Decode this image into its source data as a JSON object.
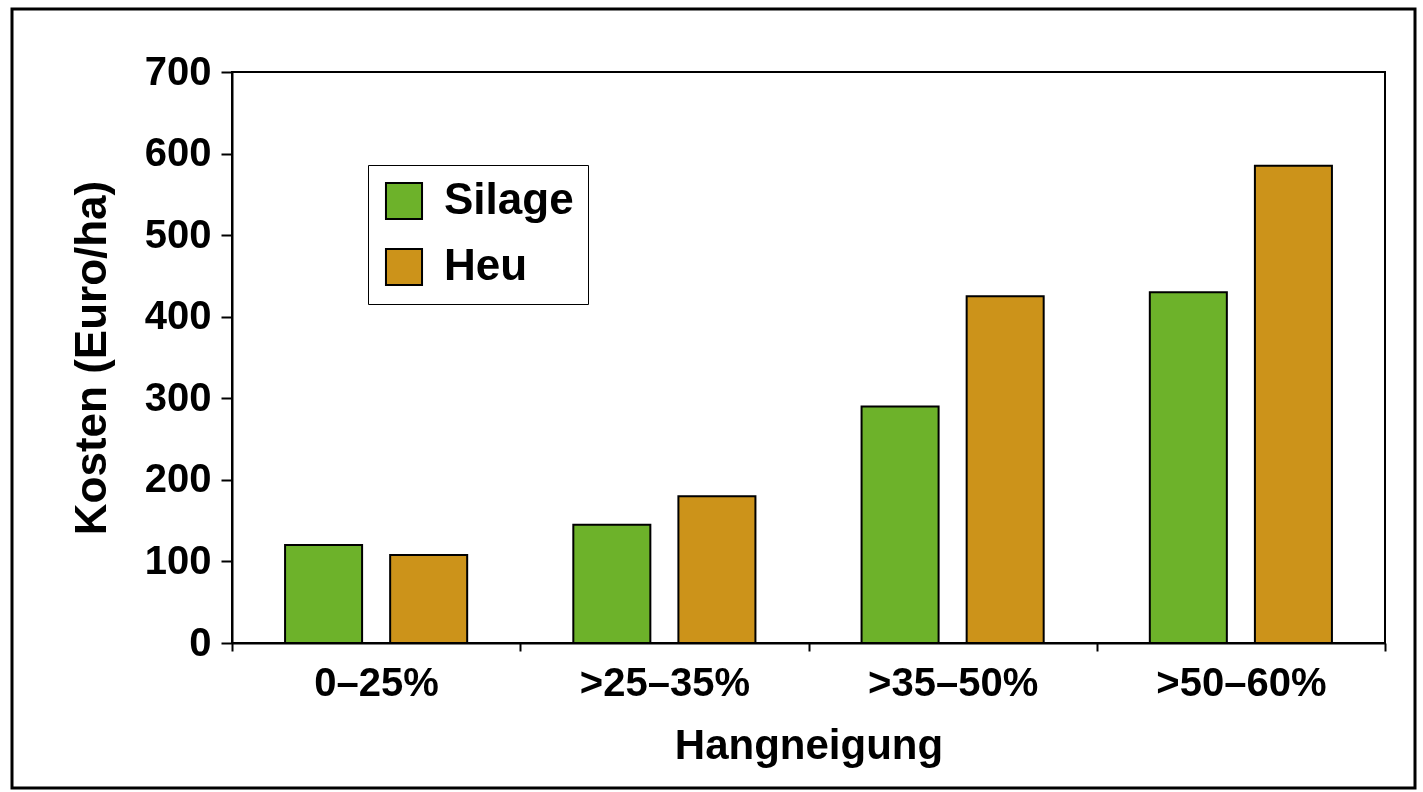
{
  "chart_data": {
    "type": "bar",
    "xlabel": "Hangneigung",
    "ylabel": "Kosten (Euro/ha)",
    "categories": [
      "0–25%",
      ">25–35%",
      ">35–50%",
      ">50–60%"
    ],
    "series": [
      {
        "name": "Silage",
        "color": "#6db22a",
        "values": [
          120,
          145,
          290,
          430
        ]
      },
      {
        "name": "Heu",
        "color": "#cc931a",
        "values": [
          108,
          180,
          425,
          585
        ]
      }
    ],
    "ylim": [
      0,
      700
    ],
    "yticks": [
      0,
      100,
      200,
      300,
      400,
      500,
      600,
      700
    ],
    "legend": "top left"
  }
}
